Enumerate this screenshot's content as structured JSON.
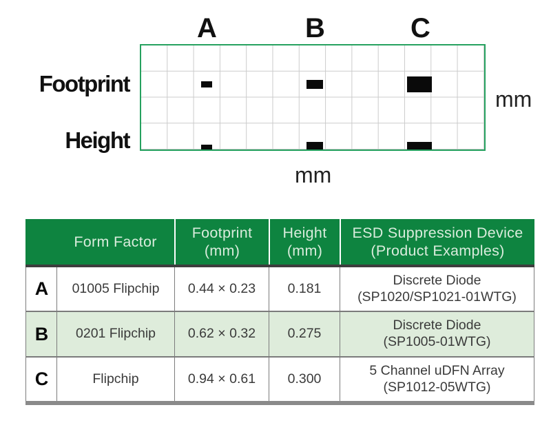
{
  "colors": {
    "header_green": "#0E8440",
    "header_text": "#D9ECDC",
    "grid_border_green": "#25A15F",
    "grid_line_gray": "#CBCBCB",
    "row_b_background": "#DEECDB",
    "table_line_gray": "#7B7B7B",
    "dark_rule_under_header": "#3D3D3D",
    "bottom_bar_gray": "#8A8A8A",
    "device_swatch_black": "#0A0A0A"
  },
  "diagram": {
    "col_labels": [
      "A",
      "B",
      "C"
    ],
    "row_label_footprint": "Footprint",
    "row_label_height": "Height",
    "unit_right": "mm",
    "unit_bottom": "mm",
    "grid_columns": 13,
    "grid_rows": 4,
    "mm_per_cell": 1
  },
  "table": {
    "headers": {
      "form_factor": "Form Factor",
      "footprint_line1": "Footprint",
      "footprint_line2": "(mm)",
      "height_line1": "Height",
      "height_line2": "(mm)",
      "device_line1": "ESD Suppression Device",
      "device_line2": "(Product Examples)"
    },
    "rows": [
      {
        "letter": "A",
        "form_factor": "01005 Flipchip",
        "footprint": "0.44 × 0.23",
        "height": "0.181",
        "device_line1": "Discrete Diode",
        "device_line2": "(SP1020/SP1021-01WTG)",
        "footprint_w_mm": 0.44,
        "footprint_h_mm": 0.23,
        "height_mm": 0.181
      },
      {
        "letter": "B",
        "form_factor": "0201 Flipchip",
        "footprint": "0.62 × 0.32",
        "height": "0.275",
        "device_line1": "Discrete Diode",
        "device_line2": "(SP1005-01WTG)",
        "footprint_w_mm": 0.62,
        "footprint_h_mm": 0.32,
        "height_mm": 0.275
      },
      {
        "letter": "C",
        "form_factor": "Flipchip",
        "footprint": "0.94 × 0.61",
        "height": "0.300",
        "device_line1": "5 Channel uDFN Array",
        "device_line2": "(SP1012-05WTG)",
        "footprint_w_mm": 0.94,
        "footprint_h_mm": 0.61,
        "height_mm": 0.3
      }
    ]
  }
}
